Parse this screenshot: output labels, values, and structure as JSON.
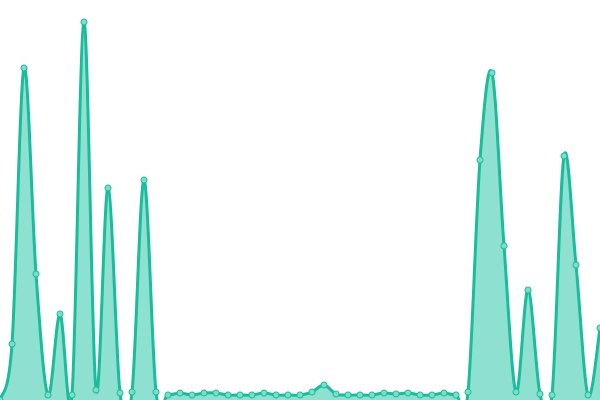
{
  "chart_data": {
    "type": "area",
    "title": "",
    "xlabel": "",
    "ylabel": "",
    "grid": false,
    "legend": "none",
    "x": [
      0,
      1,
      2,
      3,
      4,
      5,
      6,
      7,
      8,
      9,
      10,
      11,
      12,
      13,
      14,
      15,
      16,
      17,
      18,
      19,
      20,
      21,
      22,
      23,
      24,
      25,
      26,
      27,
      28,
      29,
      30,
      31,
      32,
      33,
      34,
      35,
      36,
      37,
      38,
      39,
      40,
      41,
      42,
      43,
      44,
      45,
      46,
      47,
      48,
      49,
      50
    ],
    "ylim": [
      0,
      400
    ],
    "series": [
      {
        "values": [
          0,
          56,
          332,
          126,
          5,
          86,
          5,
          378,
          10,
          212,
          7,
          8,
          220,
          8,
          5,
          7,
          5,
          7,
          7,
          5,
          5,
          5,
          7,
          5,
          5,
          5,
          8,
          15,
          6,
          5,
          5,
          5,
          7,
          6,
          7,
          5,
          5,
          7,
          5,
          8,
          240,
          327,
          154,
          8,
          110,
          6,
          5,
          244,
          135,
          5,
          72
        ],
        "stroke_color": "#1abc9c",
        "fill_color": "#8ee1d0",
        "marker_color": "#7fdcc7"
      }
    ]
  }
}
